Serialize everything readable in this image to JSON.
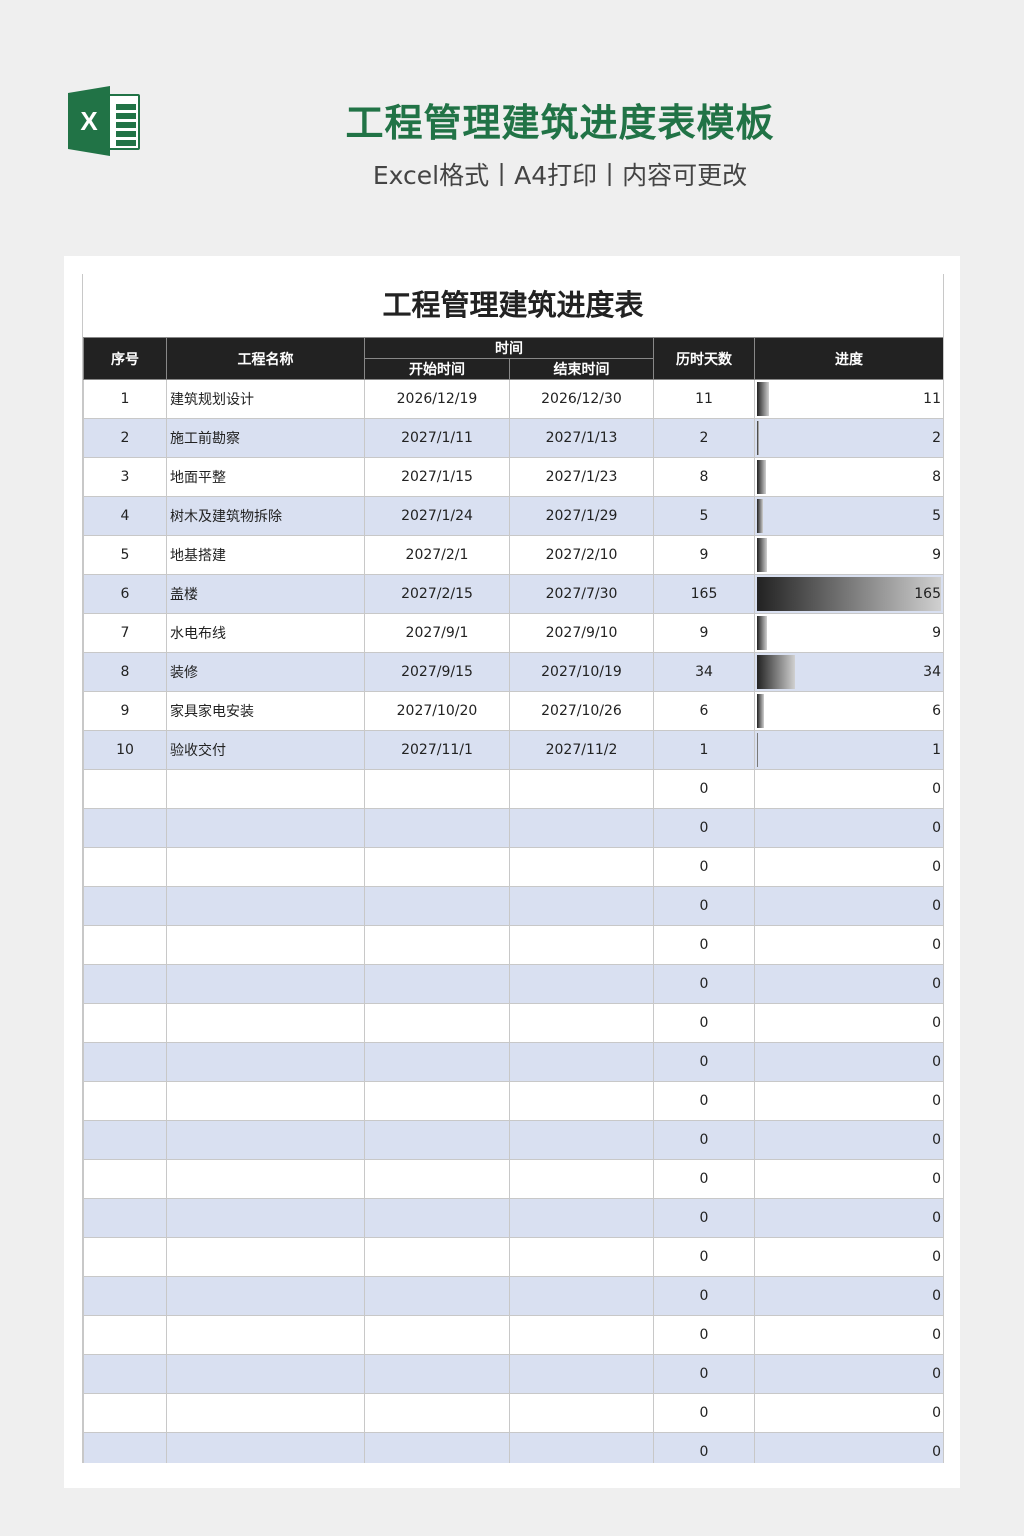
{
  "header": {
    "title": "工程管理建筑进度表模板",
    "subtitle": "Excel格式丨A4打印丨内容可更改",
    "logo_icon": "excel-icon",
    "logo_letter": "X"
  },
  "colors": {
    "accent": "#217346",
    "header_bg": "#222222",
    "alt_row": "#d9e0f1",
    "bar_dark": "#222222",
    "bar_light": "#d0d0d0"
  },
  "table": {
    "title": "工程管理建筑进度表",
    "columns": {
      "index": "序号",
      "name": "工程名称",
      "time": "时间",
      "start": "开始时间",
      "end": "结束时间",
      "days": "历时天数",
      "progress": "进度"
    },
    "max_days": 165,
    "rows": [
      {
        "index": "1",
        "name": "建筑规划设计",
        "start": "2026/12/19",
        "end": "2026/12/30",
        "days": 11
      },
      {
        "index": "2",
        "name": "施工前勘察",
        "start": "2027/1/11",
        "end": "2027/1/13",
        "days": 2
      },
      {
        "index": "3",
        "name": "地面平整",
        "start": "2027/1/15",
        "end": "2027/1/23",
        "days": 8
      },
      {
        "index": "4",
        "name": "树木及建筑物拆除",
        "start": "2027/1/24",
        "end": "2027/1/29",
        "days": 5
      },
      {
        "index": "5",
        "name": "地基搭建",
        "start": "2027/2/1",
        "end": "2027/2/10",
        "days": 9
      },
      {
        "index": "6",
        "name": "盖楼",
        "start": "2027/2/15",
        "end": "2027/7/30",
        "days": 165
      },
      {
        "index": "7",
        "name": "水电布线",
        "start": "2027/9/1",
        "end": "2027/9/10",
        "days": 9
      },
      {
        "index": "8",
        "name": "装修",
        "start": "2027/9/15",
        "end": "2027/10/19",
        "days": 34
      },
      {
        "index": "9",
        "name": "家具家电安装",
        "start": "2027/10/20",
        "end": "2027/10/26",
        "days": 6
      },
      {
        "index": "10",
        "name": "验收交付",
        "start": "2027/11/1",
        "end": "2027/11/2",
        "days": 1
      },
      {
        "index": "",
        "name": "",
        "start": "",
        "end": "",
        "days": 0
      },
      {
        "index": "",
        "name": "",
        "start": "",
        "end": "",
        "days": 0
      },
      {
        "index": "",
        "name": "",
        "start": "",
        "end": "",
        "days": 0
      },
      {
        "index": "",
        "name": "",
        "start": "",
        "end": "",
        "days": 0
      },
      {
        "index": "",
        "name": "",
        "start": "",
        "end": "",
        "days": 0
      },
      {
        "index": "",
        "name": "",
        "start": "",
        "end": "",
        "days": 0
      },
      {
        "index": "",
        "name": "",
        "start": "",
        "end": "",
        "days": 0
      },
      {
        "index": "",
        "name": "",
        "start": "",
        "end": "",
        "days": 0
      },
      {
        "index": "",
        "name": "",
        "start": "",
        "end": "",
        "days": 0
      },
      {
        "index": "",
        "name": "",
        "start": "",
        "end": "",
        "days": 0
      },
      {
        "index": "",
        "name": "",
        "start": "",
        "end": "",
        "days": 0
      },
      {
        "index": "",
        "name": "",
        "start": "",
        "end": "",
        "days": 0
      },
      {
        "index": "",
        "name": "",
        "start": "",
        "end": "",
        "days": 0
      },
      {
        "index": "",
        "name": "",
        "start": "",
        "end": "",
        "days": 0
      },
      {
        "index": "",
        "name": "",
        "start": "",
        "end": "",
        "days": 0
      },
      {
        "index": "",
        "name": "",
        "start": "",
        "end": "",
        "days": 0
      },
      {
        "index": "",
        "name": "",
        "start": "",
        "end": "",
        "days": 0
      },
      {
        "index": "",
        "name": "",
        "start": "",
        "end": "",
        "days": 0
      }
    ]
  }
}
